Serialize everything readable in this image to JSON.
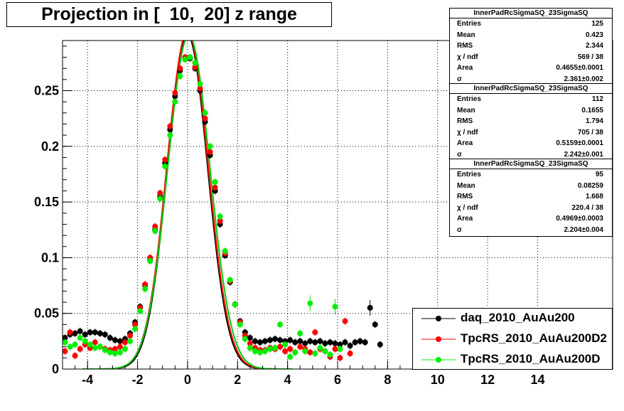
{
  "title": "Projection in [  10,  20] z range",
  "chart_data": {
    "type": "scatter",
    "xlim": [
      -5,
      17
    ],
    "ylim": [
      0,
      0.295
    ],
    "x_ticks": [
      -4,
      -2,
      0,
      2,
      4,
      6,
      8,
      10,
      12,
      14
    ],
    "y_ticks": [
      0,
      0.05,
      0.1,
      0.15,
      0.2,
      0.25
    ],
    "y_tick_labels": [
      "0",
      "0.05",
      "0.1",
      "0.15",
      "0.2",
      "0.25"
    ],
    "grid": true,
    "legend_position": "bottom-right",
    "series": [
      {
        "name": "daq_2010_AuAu200",
        "color": "#000000",
        "points": [
          [
            -4.9,
            0.028
          ],
          [
            -4.7,
            0.031
          ],
          [
            -4.5,
            0.032
          ],
          [
            -4.3,
            0.034
          ],
          [
            -4.1,
            0.031
          ],
          [
            -3.9,
            0.033
          ],
          [
            -3.7,
            0.033
          ],
          [
            -3.5,
            0.032
          ],
          [
            -3.3,
            0.031
          ],
          [
            -3.1,
            0.028
          ],
          [
            -2.9,
            0.026
          ],
          [
            -2.7,
            0.025
          ],
          [
            -2.5,
            0.027
          ],
          [
            -2.3,
            0.032
          ],
          [
            -2.1,
            0.042
          ],
          [
            -1.9,
            0.056
          ],
          [
            -1.7,
            0.075
          ],
          [
            -1.5,
            0.098
          ],
          [
            -1.3,
            0.125
          ],
          [
            -1.1,
            0.155
          ],
          [
            -0.9,
            0.185
          ],
          [
            -0.7,
            0.215
          ],
          [
            -0.5,
            0.245
          ],
          [
            -0.3,
            0.268
          ],
          [
            -0.1,
            0.279
          ],
          [
            0.1,
            0.279
          ],
          [
            0.3,
            0.27
          ],
          [
            0.5,
            0.25
          ],
          [
            0.7,
            0.222
          ],
          [
            0.9,
            0.192
          ],
          [
            1.1,
            0.16
          ],
          [
            1.3,
            0.13
          ],
          [
            1.5,
            0.102
          ],
          [
            1.7,
            0.078
          ],
          [
            1.9,
            0.058
          ],
          [
            2.1,
            0.043
          ],
          [
            2.3,
            0.033
          ],
          [
            2.5,
            0.028
          ],
          [
            2.7,
            0.025
          ],
          [
            2.9,
            0.024
          ],
          [
            3.1,
            0.025
          ],
          [
            3.3,
            0.026
          ],
          [
            3.5,
            0.027
          ],
          [
            3.7,
            0.026
          ],
          [
            3.9,
            0.025
          ],
          [
            4.1,
            0.026
          ],
          [
            4.3,
            0.024
          ],
          [
            4.5,
            0.025
          ],
          [
            4.7,
            0.023
          ],
          [
            4.9,
            0.025
          ],
          [
            5.1,
            0.024
          ],
          [
            5.3,
            0.025
          ],
          [
            5.5,
            0.023
          ],
          [
            5.7,
            0.024
          ],
          [
            5.9,
            0.023
          ],
          [
            6.1,
            0.022
          ],
          [
            6.3,
            0.024
          ],
          [
            6.5,
            0.021
          ],
          [
            6.7,
            0.024
          ],
          [
            6.9,
            0.025
          ],
          [
            7.1,
            0.024
          ],
          [
            7.3,
            0.055
          ],
          [
            7.5,
            0.04
          ],
          [
            7.7,
            0.022
          ]
        ]
      },
      {
        "name": "TpcRS_2010_AuAu200D2",
        "color": "#ff0000",
        "points": [
          [
            -4.9,
            0.016
          ],
          [
            -4.7,
            0.033
          ],
          [
            -4.5,
            0.012
          ],
          [
            -4.3,
            0.018
          ],
          [
            -4.1,
            0.022
          ],
          [
            -3.9,
            0.019
          ],
          [
            -3.7,
            0.024
          ],
          [
            -3.5,
            0.02
          ],
          [
            -3.3,
            0.018
          ],
          [
            -3.1,
            0.017
          ],
          [
            -2.9,
            0.018
          ],
          [
            -2.7,
            0.02
          ],
          [
            -2.5,
            0.024
          ],
          [
            -2.3,
            0.03
          ],
          [
            -2.1,
            0.04
          ],
          [
            -1.9,
            0.055
          ],
          [
            -1.7,
            0.076
          ],
          [
            -1.5,
            0.1
          ],
          [
            -1.3,
            0.128
          ],
          [
            -1.1,
            0.158
          ],
          [
            -0.9,
            0.188
          ],
          [
            -0.7,
            0.218
          ],
          [
            -0.5,
            0.248
          ],
          [
            -0.3,
            0.27
          ],
          [
            -0.1,
            0.28
          ],
          [
            0.1,
            0.28
          ],
          [
            0.3,
            0.271
          ],
          [
            0.5,
            0.252
          ],
          [
            0.7,
            0.225
          ],
          [
            0.9,
            0.195
          ],
          [
            1.1,
            0.163
          ],
          [
            1.3,
            0.133
          ],
          [
            1.5,
            0.104
          ],
          [
            1.7,
            0.079
          ],
          [
            1.9,
            0.058
          ],
          [
            2.1,
            0.042
          ],
          [
            2.3,
            0.03
          ],
          [
            2.5,
            0.023
          ],
          [
            2.7,
            0.019
          ],
          [
            2.9,
            0.017
          ],
          [
            3.1,
            0.017
          ],
          [
            3.3,
            0.019
          ],
          [
            3.5,
            0.018
          ],
          [
            3.7,
            0.02
          ],
          [
            3.9,
            0.016
          ],
          [
            4.1,
            0.018
          ],
          [
            4.3,
            0.015
          ],
          [
            4.5,
            0.02
          ],
          [
            4.7,
            0.018
          ],
          [
            4.9,
            0.015
          ],
          [
            5.1,
            0.033
          ],
          [
            5.3,
            0.018
          ],
          [
            5.5,
            0.016
          ],
          [
            5.7,
            0.011
          ],
          [
            5.9,
            0.018
          ],
          [
            6.1,
            0.01
          ],
          [
            6.3,
            0.043
          ],
          [
            6.5,
            0.014
          ]
        ]
      },
      {
        "name": "TpcRS_2010_AuAu200D",
        "color": "#00ee00",
        "points": [
          [
            -4.9,
            0.024
          ],
          [
            -4.7,
            0.02
          ],
          [
            -4.5,
            0.022
          ],
          [
            -4.3,
            0.028
          ],
          [
            -4.1,
            0.025
          ],
          [
            -3.9,
            0.022
          ],
          [
            -3.7,
            0.019
          ],
          [
            -3.5,
            0.02
          ],
          [
            -3.3,
            0.017
          ],
          [
            -3.1,
            0.015
          ],
          [
            -2.9,
            0.014
          ],
          [
            -2.7,
            0.015
          ],
          [
            -2.5,
            0.018
          ],
          [
            -2.3,
            0.025
          ],
          [
            -2.1,
            0.036
          ],
          [
            -1.9,
            0.052
          ],
          [
            -1.7,
            0.072
          ],
          [
            -1.5,
            0.097
          ],
          [
            -1.3,
            0.124
          ],
          [
            -1.1,
            0.153
          ],
          [
            -0.9,
            0.182
          ],
          [
            -0.7,
            0.21
          ],
          [
            -0.5,
            0.24
          ],
          [
            -0.3,
            0.263
          ],
          [
            -0.1,
            0.278
          ],
          [
            0.1,
            0.28
          ],
          [
            0.3,
            0.275
          ],
          [
            0.5,
            0.256
          ],
          [
            0.7,
            0.23
          ],
          [
            0.9,
            0.2
          ],
          [
            1.1,
            0.168
          ],
          [
            1.3,
            0.137
          ],
          [
            1.5,
            0.106
          ],
          [
            1.7,
            0.08
          ],
          [
            1.9,
            0.058
          ],
          [
            2.1,
            0.04
          ],
          [
            2.3,
            0.027
          ],
          [
            2.5,
            0.019
          ],
          [
            2.7,
            0.016
          ],
          [
            2.9,
            0.015
          ],
          [
            3.1,
            0.016
          ],
          [
            3.3,
            0.018
          ],
          [
            3.5,
            0.019
          ],
          [
            3.7,
            0.04
          ],
          [
            3.9,
            0.022
          ],
          [
            4.1,
            0.011
          ],
          [
            4.3,
            0.015
          ],
          [
            4.5,
            0.032
          ],
          [
            4.7,
            0.016
          ],
          [
            4.9,
            0.059
          ],
          [
            5.1,
            0.014
          ],
          [
            5.3,
            0.019
          ],
          [
            5.5,
            0.016
          ],
          [
            5.7,
            0.013
          ],
          [
            5.9,
            0.056
          ],
          [
            6.1,
            0.018
          ]
        ]
      }
    ],
    "gaussian_fits": [
      {
        "color": "#000000",
        "mean": 0.0,
        "sigma": 0.8,
        "amp": 0.3
      },
      {
        "color": "#ff0000",
        "mean": 0.0,
        "sigma": 0.82,
        "amp": 0.303
      },
      {
        "color": "#00cc00",
        "mean": 0.05,
        "sigma": 0.84,
        "amp": 0.3
      }
    ]
  },
  "stats_boxes": [
    {
      "name": "InnerPadRcSigmaSQ_23SigmaSQ",
      "rows": [
        {
          "label": "Entries",
          "value": "125"
        },
        {
          "label": "Mean",
          "value": "0.423"
        },
        {
          "label": "RMS",
          "value": "2.344"
        },
        {
          "label": "χ  / ndf",
          "value": "569 / 38"
        },
        {
          "label": "Area",
          "value": "0.4655±0.0001"
        },
        {
          "label": "σ",
          "value": "2.361±0.002"
        }
      ]
    },
    {
      "name": "InnerPadRcSigmaSQ_23SigmaSQ",
      "rows": [
        {
          "label": "Entries",
          "value": "112"
        },
        {
          "label": "Mean",
          "value": "0.1655"
        },
        {
          "label": "RMS",
          "value": "1.794"
        },
        {
          "label": "χ  / ndf",
          "value": "705 / 38"
        },
        {
          "label": "Area",
          "value": "0.5159±0.0001"
        },
        {
          "label": "σ",
          "value": "2.242±0.001"
        }
      ]
    },
    {
      "name": "InnerPadRcSigmaSQ_23SigmaSQ",
      "rows": [
        {
          "label": "Entries",
          "value": "95"
        },
        {
          "label": "Mean",
          "value": "0.08259"
        },
        {
          "label": "RMS",
          "value": "1.668"
        },
        {
          "label": "χ  / ndf",
          "value": "220.4 / 38"
        },
        {
          "label": "Area",
          "value": "0.4969±0.0003"
        },
        {
          "label": "σ",
          "value": "2.204±0.004"
        }
      ]
    }
  ],
  "legend": [
    {
      "label": "daq_2010_AuAu200",
      "color": "#000000"
    },
    {
      "label": "TpcRS_2010_AuAu200D2",
      "color": "#ff0000"
    },
    {
      "label": "TpcRS_2010_AuAu200D",
      "color": "#00ee00"
    }
  ]
}
